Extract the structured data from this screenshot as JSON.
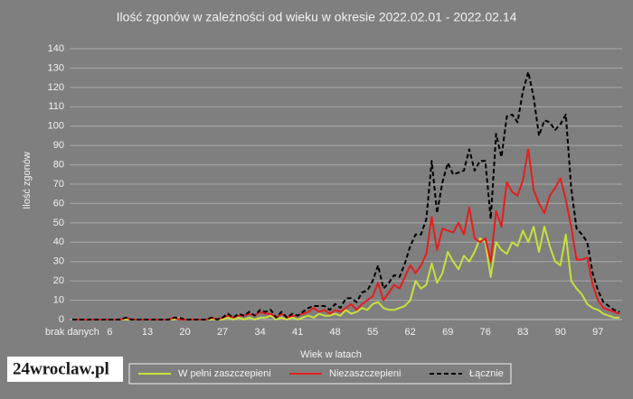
{
  "chart_data": {
    "type": "line",
    "title": "Ilość zgonów w zależności od wieku w okresie 2022.02.01 - 2022.02.14",
    "ylabel": "Ilość zgonów",
    "xlabel": "Wiek w latach",
    "logo": "24wroclaw.pl",
    "categories": [
      "brak danych",
      null,
      null,
      null,
      null,
      null,
      null,
      "6",
      null,
      null,
      null,
      null,
      null,
      null,
      "13",
      null,
      null,
      null,
      null,
      null,
      null,
      "20",
      null,
      null,
      null,
      null,
      null,
      null,
      "27",
      null,
      null,
      null,
      null,
      null,
      null,
      "34",
      null,
      null,
      null,
      null,
      null,
      null,
      "41",
      null,
      null,
      null,
      null,
      null,
      null,
      "48",
      null,
      null,
      null,
      null,
      null,
      null,
      "55",
      null,
      null,
      null,
      null,
      null,
      null,
      "62",
      null,
      null,
      null,
      null,
      null,
      null,
      "69",
      null,
      null,
      null,
      null,
      null,
      null,
      "76",
      null,
      null,
      null,
      null,
      null,
      null,
      "83",
      null,
      null,
      null,
      null,
      null,
      null,
      "90",
      null,
      null,
      null,
      null,
      null,
      null,
      "97",
      null,
      null,
      null,
      null
    ],
    "series": [
      {
        "name": "W pełni zaszczepieni",
        "color": "#c8e03c",
        "dashed": false,
        "values": [
          0,
          0,
          0,
          0,
          0,
          0,
          0,
          0,
          0,
          0,
          0,
          0,
          0,
          0,
          0,
          0,
          0,
          0,
          0,
          0,
          1,
          0,
          0,
          0,
          0,
          0,
          0,
          0,
          0,
          1,
          0,
          1,
          0,
          1,
          0,
          1,
          1,
          2,
          0,
          1,
          0,
          1,
          0,
          1,
          2,
          1,
          3,
          2,
          2,
          3,
          2,
          5,
          3,
          4,
          6,
          5,
          8,
          9,
          6,
          5,
          5,
          6,
          7,
          10,
          20,
          16,
          18,
          29,
          19,
          24,
          35,
          30,
          26,
          33,
          30,
          35,
          42,
          40,
          22,
          40,
          36,
          34,
          40,
          38,
          46,
          40,
          48,
          35,
          48,
          38,
          30,
          28,
          44,
          20,
          16,
          13,
          8,
          6,
          5,
          3,
          2,
          1,
          1
        ]
      },
      {
        "name": "Niezaszczepieni",
        "color": "#e41e1e",
        "dashed": false,
        "values": [
          0,
          0,
          0,
          0,
          0,
          0,
          0,
          0,
          0,
          0,
          1,
          0,
          0,
          0,
          0,
          0,
          0,
          0,
          0,
          1,
          0,
          0,
          0,
          0,
          0,
          0,
          1,
          0,
          1,
          2,
          1,
          2,
          2,
          3,
          2,
          4,
          3,
          3,
          1,
          3,
          1,
          2,
          2,
          3,
          4,
          6,
          4,
          5,
          3,
          5,
          4,
          6,
          8,
          5,
          8,
          10,
          12,
          19,
          10,
          14,
          18,
          16,
          22,
          28,
          24,
          28,
          34,
          53,
          36,
          47,
          46,
          45,
          50,
          44,
          58,
          42,
          40,
          42,
          30,
          56,
          48,
          71,
          66,
          64,
          72,
          88,
          67,
          60,
          55,
          64,
          68,
          73,
          62,
          48,
          31,
          31,
          32,
          18,
          10,
          6,
          5,
          4,
          3
        ]
      },
      {
        "name": "Łącznie",
        "color": "#000000",
        "dashed": true,
        "values": [
          0,
          0,
          0,
          0,
          0,
          0,
          0,
          0,
          0,
          0,
          1,
          0,
          0,
          0,
          0,
          0,
          0,
          0,
          0,
          1,
          1,
          0,
          0,
          0,
          0,
          0,
          1,
          0,
          1,
          3,
          1,
          3,
          2,
          4,
          2,
          5,
          4,
          5,
          1,
          4,
          1,
          3,
          2,
          4,
          6,
          7,
          7,
          7,
          5,
          8,
          6,
          11,
          11,
          9,
          14,
          15,
          20,
          28,
          16,
          19,
          23,
          22,
          29,
          38,
          44,
          44,
          52,
          82,
          55,
          71,
          81,
          75,
          76,
          77,
          88,
          77,
          82,
          82,
          52,
          96,
          84,
          105,
          106,
          102,
          118,
          128,
          115,
          95,
          103,
          102,
          98,
          101,
          106,
          68,
          47,
          44,
          40,
          24,
          15,
          9,
          7,
          5,
          4
        ]
      }
    ],
    "ylim": [
      0,
      140
    ],
    "yticks": [
      0,
      10,
      20,
      30,
      40,
      50,
      60,
      70,
      80,
      90,
      100,
      110,
      120,
      130,
      140
    ],
    "grid": true,
    "legend": "bottom"
  }
}
